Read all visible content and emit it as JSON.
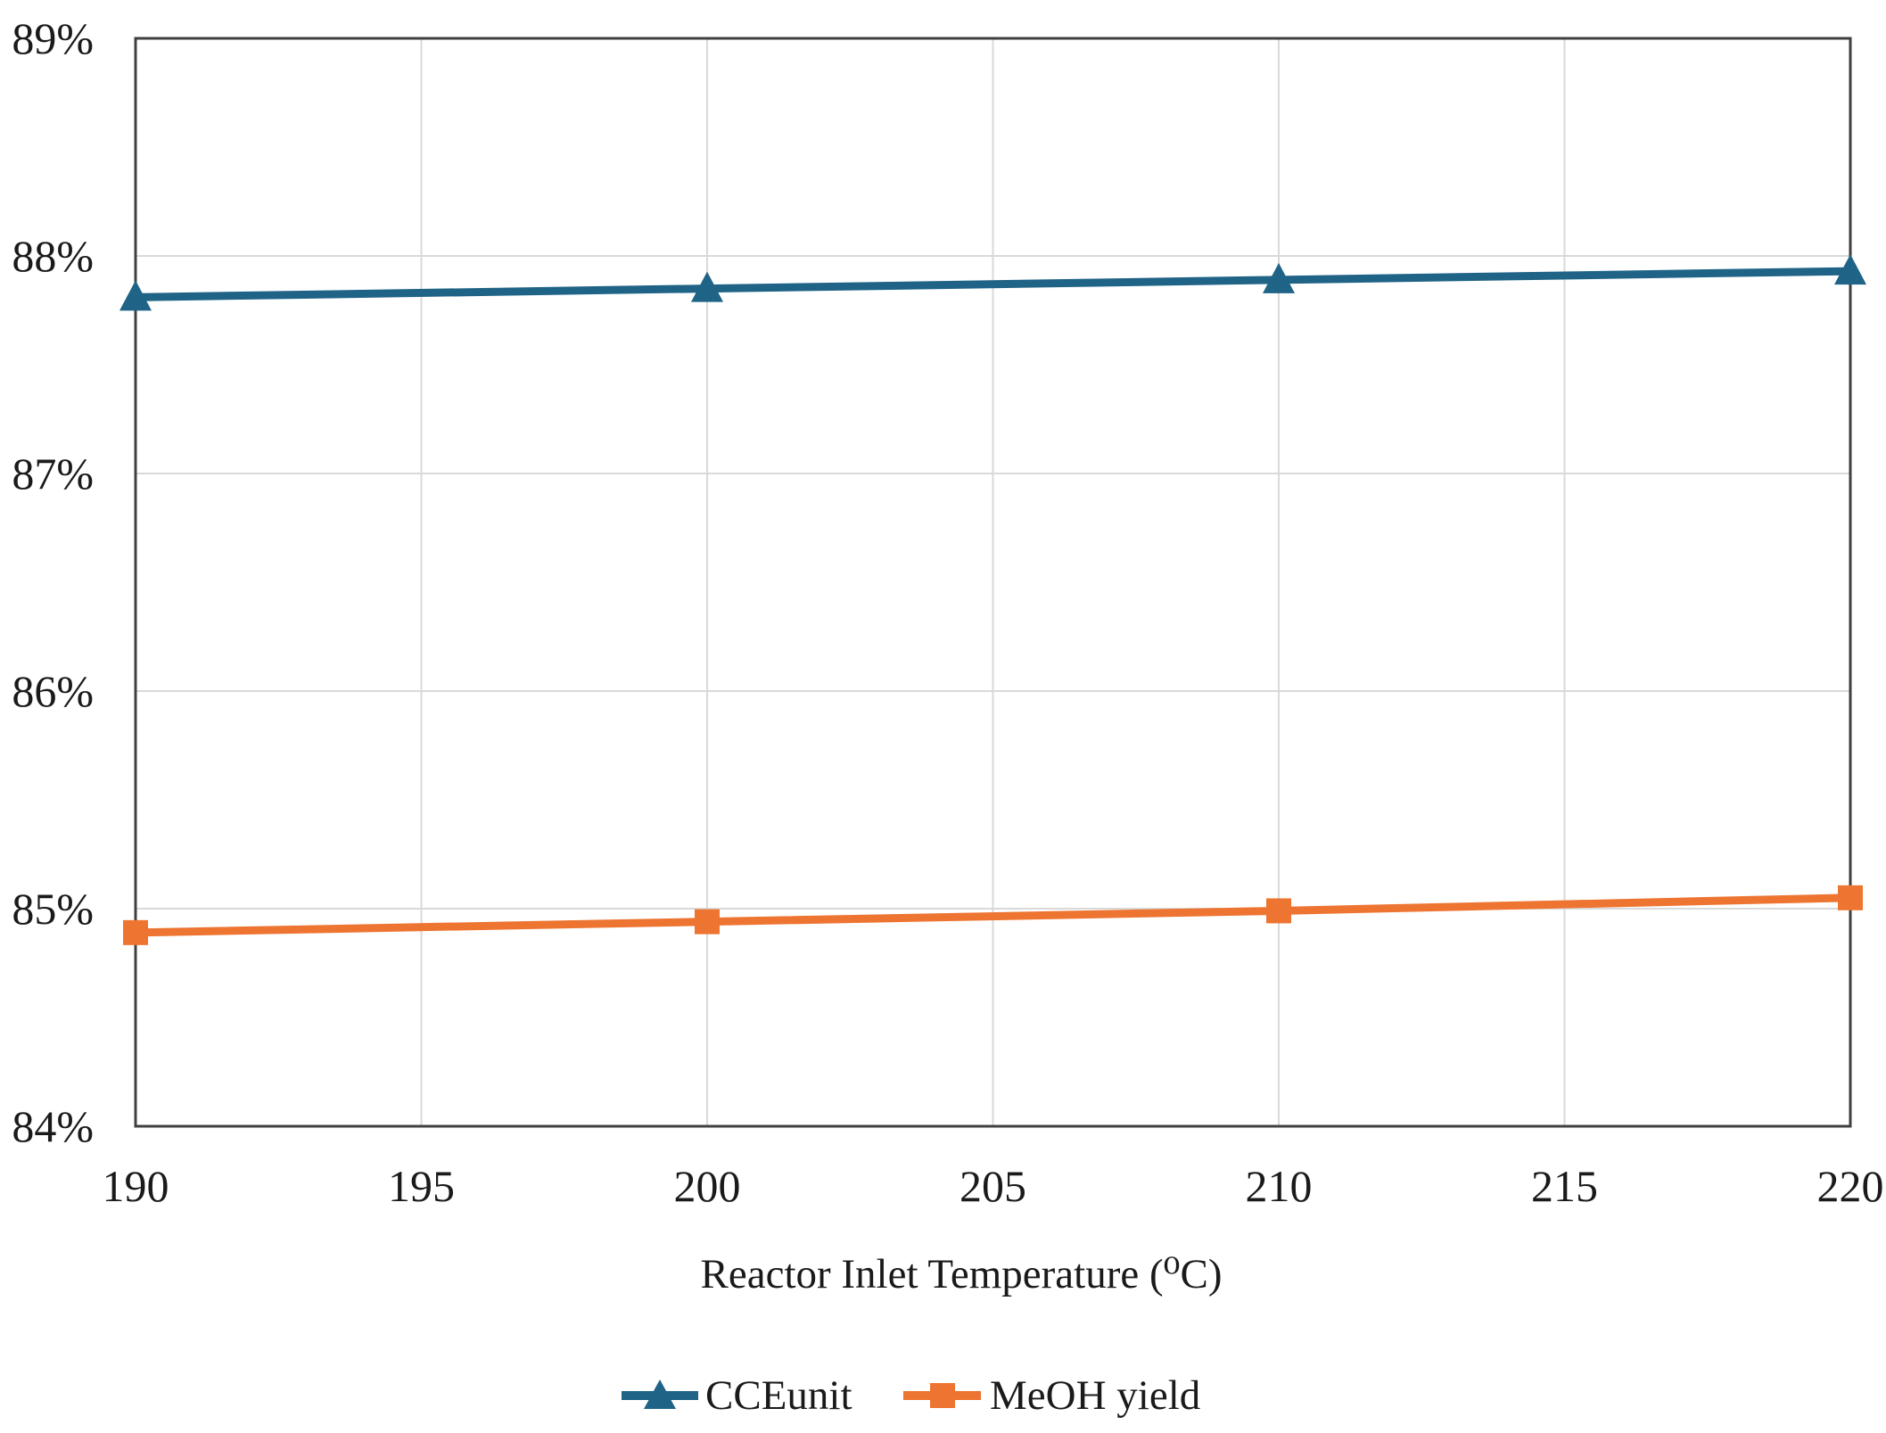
{
  "chart_data": {
    "type": "line",
    "x": [
      190,
      200,
      210,
      220
    ],
    "series": [
      {
        "name": "CCEunit",
        "values": [
          87.81,
          87.85,
          87.89,
          87.93
        ],
        "color": "#1F6386",
        "marker": "triangle"
      },
      {
        "name": "MeOH yield",
        "values": [
          84.89,
          84.94,
          84.99,
          85.05
        ],
        "color": "#ED7431",
        "marker": "square"
      }
    ],
    "xlabel": "Reactor Inlet Temperature (⁰C)",
    "ylabel": "",
    "xlim": [
      190,
      220
    ],
    "ylim": [
      84,
      89
    ],
    "xticks": [
      190,
      195,
      200,
      205,
      210,
      215,
      220
    ],
    "yticks": [
      84,
      85,
      86,
      87,
      88,
      89
    ],
    "ytick_labels": [
      "84%",
      "85%",
      "86%",
      "87%",
      "88%",
      "89%"
    ],
    "grid": true,
    "legend_position": "bottom-center",
    "colors": {
      "axis_border": "#3f3f3f",
      "gridline": "#d9d9d9",
      "text": "#1a1a1a",
      "background": "#ffffff"
    }
  }
}
